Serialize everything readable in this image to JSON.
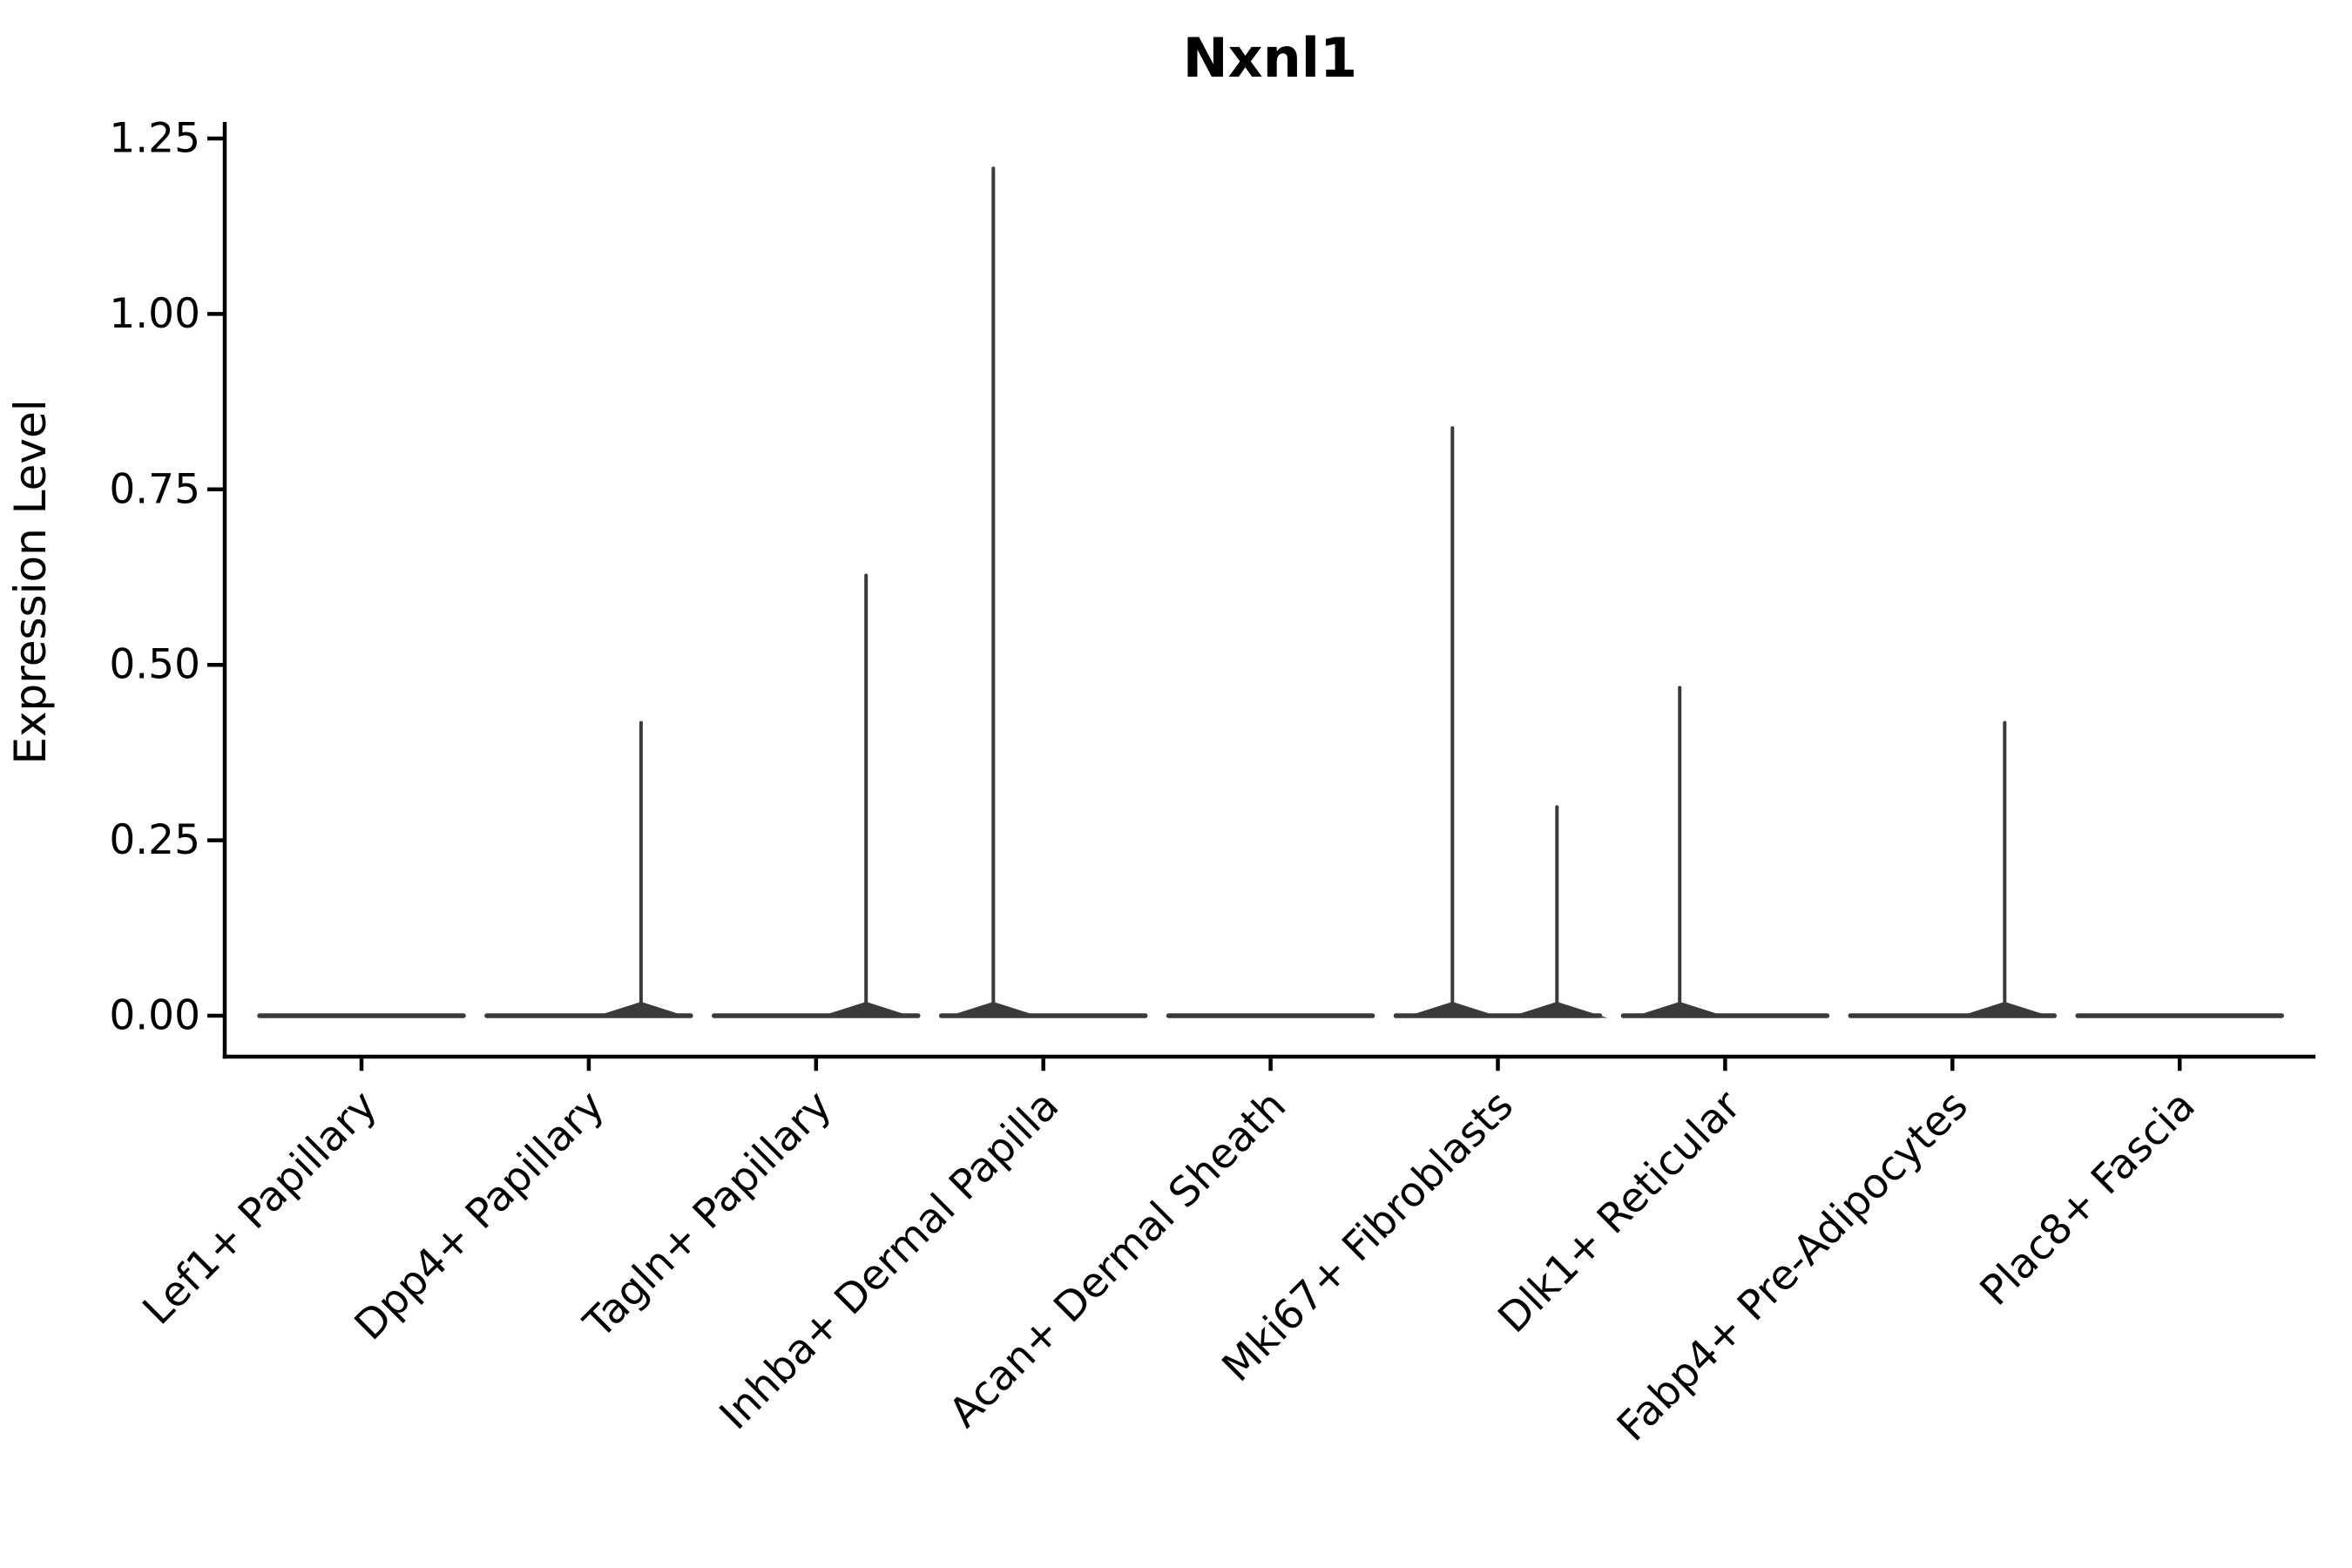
{
  "title": "Nxnl1",
  "ylabel": "Expression Level",
  "chart_data": {
    "type": "violin",
    "title": "Nxnl1",
    "xlabel": "",
    "ylabel": "Expression Level",
    "ylim": [
      0,
      1.25
    ],
    "yticks": [
      0.0,
      0.25,
      0.5,
      0.75,
      1.0,
      1.25
    ],
    "ytick_labels": [
      "0.00",
      "0.25",
      "0.50",
      "0.75",
      "1.00",
      "1.25"
    ],
    "grid": false,
    "legend": "none",
    "violin_color": "#3a3a3a",
    "axis_color": "#000000",
    "background_color": "#ffffff",
    "x_tick_label_rotation_deg": 45,
    "categories": [
      {
        "label": "Lef1+ Papillary",
        "max_expression": 0.0,
        "spikes": []
      },
      {
        "label": "Dpp4+ Papillary",
        "max_expression": 0.42,
        "spikes": [
          {
            "value": 0.42,
            "offset_frac": 0.23
          }
        ]
      },
      {
        "label": "Tagln+ Papillary",
        "max_expression": 0.63,
        "spikes": [
          {
            "value": 0.63,
            "offset_frac": 0.22
          }
        ]
      },
      {
        "label": "Inhba+ Dermal Papilla",
        "max_expression": 1.21,
        "spikes": [
          {
            "value": 1.21,
            "offset_frac": -0.22
          }
        ]
      },
      {
        "label": "Acan+ Dermal Sheath",
        "max_expression": 0.0,
        "spikes": []
      },
      {
        "label": "Mki67+ Fibroblasts",
        "max_expression": 0.84,
        "spikes": [
          {
            "value": 0.84,
            "offset_frac": -0.2
          },
          {
            "value": 0.3,
            "offset_frac": 0.26
          }
        ]
      },
      {
        "label": "Dlk1+ Reticular",
        "max_expression": 0.47,
        "spikes": [
          {
            "value": 0.47,
            "offset_frac": -0.2
          }
        ]
      },
      {
        "label": "Fabp4+ Pre-Adipocytes",
        "max_expression": 0.42,
        "spikes": [
          {
            "value": 0.42,
            "offset_frac": 0.23
          }
        ]
      },
      {
        "label": "Plac8+ Fascia",
        "max_expression": 0.0,
        "spikes": []
      }
    ]
  }
}
